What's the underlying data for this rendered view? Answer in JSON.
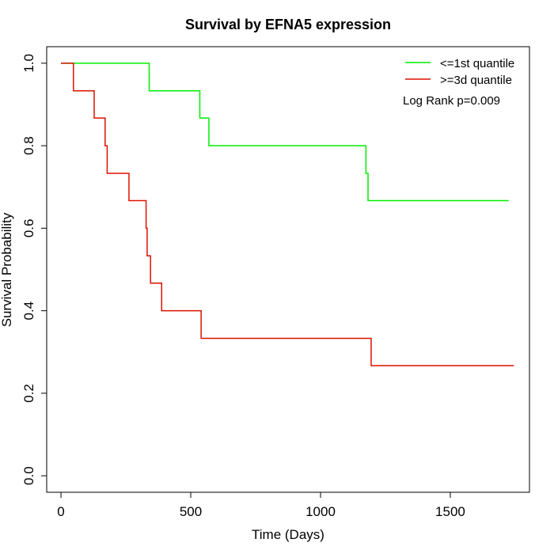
{
  "chart_data": {
    "type": "line",
    "title": "Survival by EFNA5 expression",
    "xlabel": "Time (Days)",
    "ylabel": "Survival Probability",
    "xlim": [
      -55,
      1805
    ],
    "ylim": [
      -0.04,
      1.04
    ],
    "x_ticks": [
      0,
      500,
      1000,
      1500
    ],
    "x_tick_labels": [
      "0",
      "500",
      "1000",
      "1500"
    ],
    "y_ticks": [
      0,
      0.2,
      0.4,
      0.6,
      0.8,
      1.0
    ],
    "y_tick_labels": [
      "0.0",
      "0.2",
      "0.4",
      "0.6",
      "0.8",
      "1.0"
    ],
    "grid": false,
    "legend_position": "top-right",
    "annotation": "Log Rank p=0.009",
    "series": [
      {
        "name": "<=1st quantile",
        "color": "#00ee00",
        "step": true,
        "points": [
          [
            0,
            1.0
          ],
          [
            340,
            1.0
          ],
          [
            340,
            0.933
          ],
          [
            535,
            0.933
          ],
          [
            535,
            0.867
          ],
          [
            570,
            0.867
          ],
          [
            570,
            0.8
          ],
          [
            1175,
            0.8
          ],
          [
            1175,
            0.733
          ],
          [
            1183,
            0.733
          ],
          [
            1183,
            0.667
          ],
          [
            1725,
            0.667
          ]
        ]
      },
      {
        "name": ">=3d quantile",
        "color": "#dd1100",
        "step": true,
        "points": [
          [
            0,
            1.0
          ],
          [
            48,
            1.0
          ],
          [
            48,
            0.933
          ],
          [
            128,
            0.933
          ],
          [
            128,
            0.867
          ],
          [
            170,
            0.867
          ],
          [
            170,
            0.8
          ],
          [
            178,
            0.8
          ],
          [
            178,
            0.733
          ],
          [
            262,
            0.733
          ],
          [
            262,
            0.667
          ],
          [
            328,
            0.667
          ],
          [
            328,
            0.6
          ],
          [
            332,
            0.6
          ],
          [
            332,
            0.533
          ],
          [
            345,
            0.533
          ],
          [
            345,
            0.467
          ],
          [
            388,
            0.467
          ],
          [
            388,
            0.4
          ],
          [
            540,
            0.4
          ],
          [
            540,
            0.333
          ],
          [
            1195,
            0.333
          ],
          [
            1195,
            0.267
          ],
          [
            1745,
            0.267
          ]
        ]
      }
    ]
  }
}
